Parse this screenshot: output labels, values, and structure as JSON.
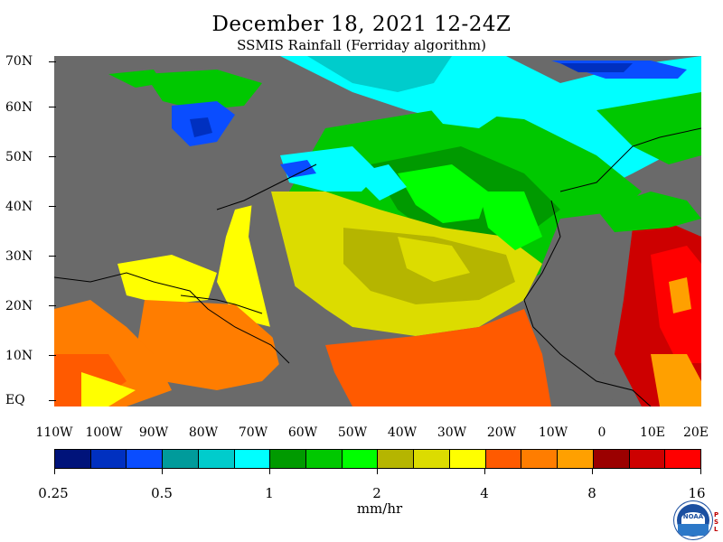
{
  "header": {
    "title": "December 18, 2021 12-24Z",
    "subtitle": "SSMIS Rainfall (Ferriday algorithm)"
  },
  "map": {
    "lat_labels": [
      "70N",
      "60N",
      "50N",
      "40N",
      "30N",
      "20N",
      "10N",
      "EQ"
    ],
    "lon_labels": [
      "110W",
      "100W",
      "90W",
      "80W",
      "70W",
      "60W",
      "50W",
      "40W",
      "30W",
      "20W",
      "10W",
      "0",
      "10E",
      "20E"
    ],
    "land_color": "#6a6a6a"
  },
  "colorbar": {
    "colors": [
      "#00137a",
      "#0030c0",
      "#0a4dff",
      "#009b9b",
      "#00cccc",
      "#00ffff",
      "#009a00",
      "#00c800",
      "#00ff00",
      "#b5b500",
      "#dcdc00",
      "#ffff00",
      "#ff5a00",
      "#ff7d00",
      "#ffa000",
      "#9b0000",
      "#cd0000",
      "#ff0000"
    ],
    "tick_labels": [
      "0.25",
      "0.5",
      "1",
      "2",
      "4",
      "8",
      "16"
    ],
    "units": "mm/hr"
  },
  "logo": {
    "noaa_text": "NOAA",
    "psl_letters": [
      "P",
      "S",
      "L"
    ]
  }
}
